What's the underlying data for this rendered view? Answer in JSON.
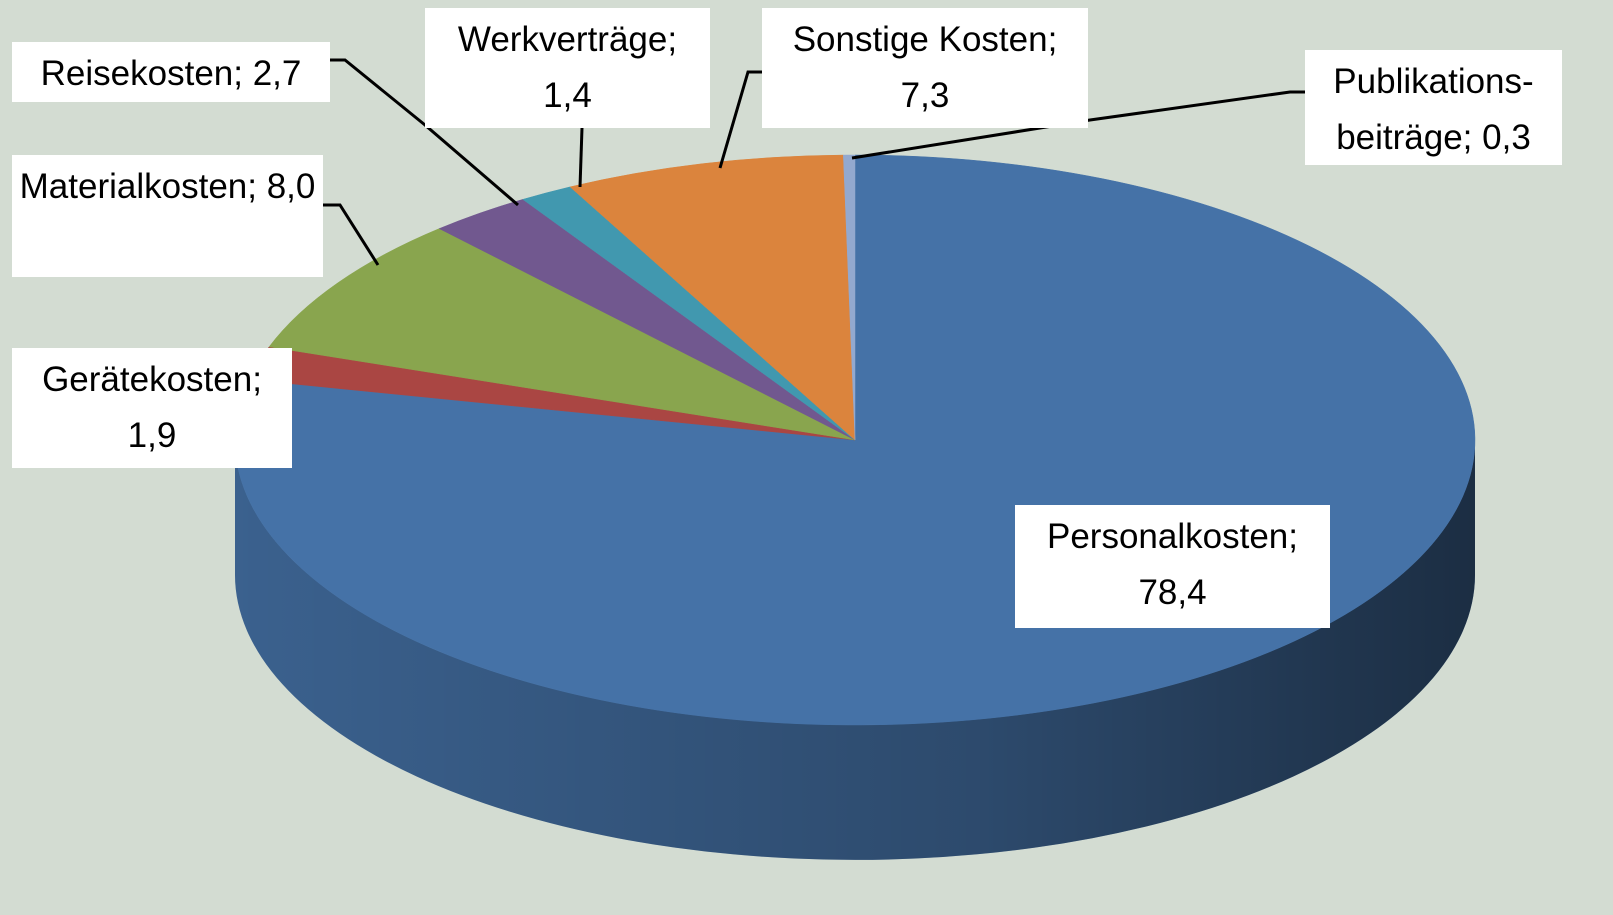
{
  "chart_data": {
    "type": "pie3d",
    "categories": [
      "Personalkosten;",
      "Gerätekosten;",
      "Materialkosten;",
      "Reisekosten;",
      "Werkverträge;",
      "Sonstige Kosten;",
      "Publikations-beiträge;"
    ],
    "values": [
      78.4,
      1.9,
      8.0,
      2.7,
      1.4,
      7.3,
      0.3
    ],
    "value_labels": [
      "78,4",
      "1,9",
      "8,0",
      "2,7",
      "1,4",
      "7,3",
      "0,3"
    ],
    "colors": [
      "#4572a7",
      "#aa4643",
      "#89a54e",
      "#71588f",
      "#4198af",
      "#db843d",
      "#93a9cf"
    ]
  }
}
